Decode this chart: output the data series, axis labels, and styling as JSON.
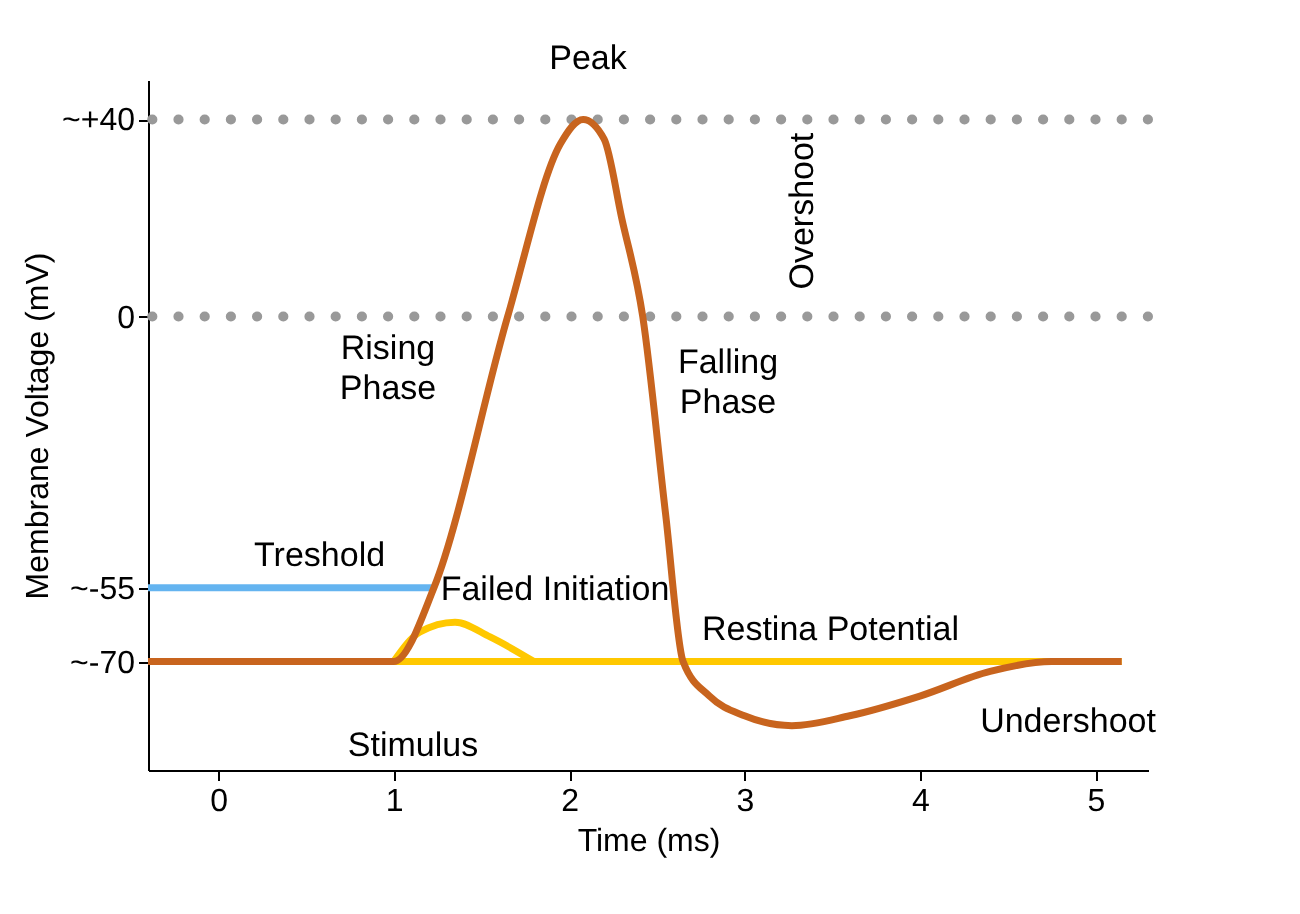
{
  "chart_data": {
    "type": "line",
    "xlabel": "Time (ms)",
    "ylabel": "Membrane Voltage (mV)",
    "xlim": [
      -0.4,
      5.3
    ],
    "xticks": [
      0,
      1,
      2,
      3,
      4,
      5
    ],
    "ylim": [
      -92,
      48
    ],
    "yticks": [
      {
        "value": 40,
        "label": "~+40"
      },
      0,
      {
        "value": -55,
        "label": "~-55"
      },
      {
        "value": -70,
        "label": "~-70"
      }
    ],
    "grid": false,
    "series": [
      {
        "name": "Treshold",
        "color": "#64b4f0",
        "x": [
          -0.4,
          1.23
        ],
        "values": [
          -55,
          -55
        ]
      },
      {
        "name": "Restina Potential",
        "color": "#ffc800",
        "x": [
          1.0,
          5.15
        ],
        "values": [
          -70,
          -70
        ]
      },
      {
        "name": "Failed Initiation",
        "color": "#ffc800",
        "x": [
          1.0,
          1.15,
          1.35,
          1.55,
          1.8
        ],
        "values": [
          -70,
          -64,
          -62,
          -65,
          -70
        ]
      },
      {
        "color": "#c8641e",
        "x": [
          -0.4,
          1.0,
          1.23,
          1.65,
          1.95,
          2.08,
          2.2,
          2.3,
          2.42,
          2.55,
          2.65,
          2.8,
          3.0,
          3.27,
          3.6,
          4.0,
          4.4,
          4.75,
          5.15
        ],
        "values": [
          -70,
          -70,
          -55,
          0,
          35,
          40,
          36,
          20,
          0,
          -40,
          -70,
          -77,
          -81,
          -83,
          -81,
          -77,
          -72,
          -70,
          -70
        ]
      }
    ],
    "ref_lines": [
      {
        "axis": "y",
        "value": 40,
        "color": "#999999",
        "line_style": "dotted"
      },
      {
        "axis": "y",
        "value": 0,
        "color": "#999999",
        "line_style": "dotted"
      }
    ],
    "annotations": [
      "Peak",
      "Rising Phase",
      "Falling Phase",
      "Overshoot",
      "Undershoot",
      "Stimulus"
    ]
  }
}
